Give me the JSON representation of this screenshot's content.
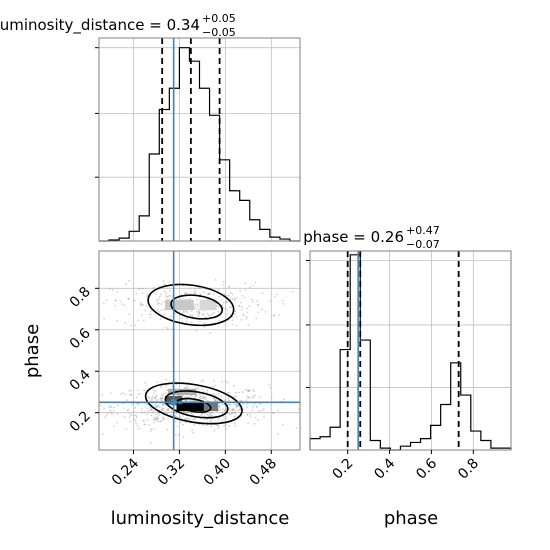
{
  "chart_data": {
    "type": "corner",
    "parameters": [
      "luminosity_distance",
      "phase"
    ],
    "truths": {
      "luminosity_distance": 0.31,
      "phase": 0.25
    },
    "colors": {
      "hist": "#000000",
      "truth": "#4682b4",
      "grid": "#c0c0c0",
      "scatter": "#808080",
      "frame": "#808080"
    },
    "grid": true,
    "panels": {
      "luminosity_distance_hist": {
        "title": {
          "prefix": "luminosity_distance = 0.34",
          "plus": "+0.05",
          "minus": "−0.05"
        },
        "xlim": [
          0.18,
          0.53
        ],
        "ylim": [
          0,
          1.05
        ],
        "quantiles": [
          0.29,
          0.34,
          0.39
        ],
        "bins_x": [
          0.18,
          0.1975,
          0.215,
          0.2325,
          0.25,
          0.2675,
          0.285,
          0.3025,
          0.32,
          0.3375,
          0.355,
          0.3725,
          0.39,
          0.4075,
          0.425,
          0.4425,
          0.46,
          0.4775,
          0.495,
          0.5125,
          0.53
        ],
        "counts": [
          0.0,
          0.005,
          0.015,
          0.05,
          0.13,
          0.45,
          0.68,
          0.79,
          1.0,
          0.93,
          0.79,
          0.65,
          0.42,
          0.26,
          0.21,
          0.11,
          0.06,
          0.02,
          0.01,
          0.0
        ]
      },
      "phase_hist": {
        "title": {
          "prefix": "phase = 0.26",
          "plus": "+0.47",
          "minus": "−0.07"
        },
        "xlim": [
          0.02,
          0.98
        ],
        "ylim": [
          0,
          1.05
        ],
        "quantiles": [
          0.2,
          0.26,
          0.73
        ],
        "bins_x": [
          0.02,
          0.068,
          0.116,
          0.164,
          0.212,
          0.26,
          0.308,
          0.356,
          0.404,
          0.452,
          0.5,
          0.548,
          0.596,
          0.644,
          0.692,
          0.74,
          0.788,
          0.836,
          0.884,
          0.932,
          0.98
        ],
        "counts": [
          0.06,
          0.07,
          0.12,
          0.53,
          1.03,
          0.58,
          0.05,
          0.01,
          0.0,
          0.02,
          0.04,
          0.06,
          0.13,
          0.24,
          0.46,
          0.29,
          0.1,
          0.05,
          0.01,
          0.01
        ]
      },
      "joint": {
        "xlim": [
          0.18,
          0.53
        ],
        "ylim": [
          0.02,
          0.98
        ],
        "clusters": [
          {
            "x": 0.34,
            "y": 0.23,
            "sx": 0.045,
            "sy": 0.04,
            "n": 700
          },
          {
            "x": 0.34,
            "y": 0.72,
            "sx": 0.045,
            "sy": 0.04,
            "n": 320
          }
        ]
      }
    },
    "x_ticks": {
      "luminosity_distance": [
        "0.24",
        "0.32",
        "0.40",
        "0.48"
      ],
      "phase": [
        "0.2",
        "0.4",
        "0.6",
        "0.8"
      ]
    },
    "y_ticks": {
      "phase": [
        "0.2",
        "0.4",
        "0.6",
        "0.8"
      ]
    },
    "xlabels": [
      "luminosity_distance",
      "phase"
    ],
    "ylabel": "phase"
  }
}
